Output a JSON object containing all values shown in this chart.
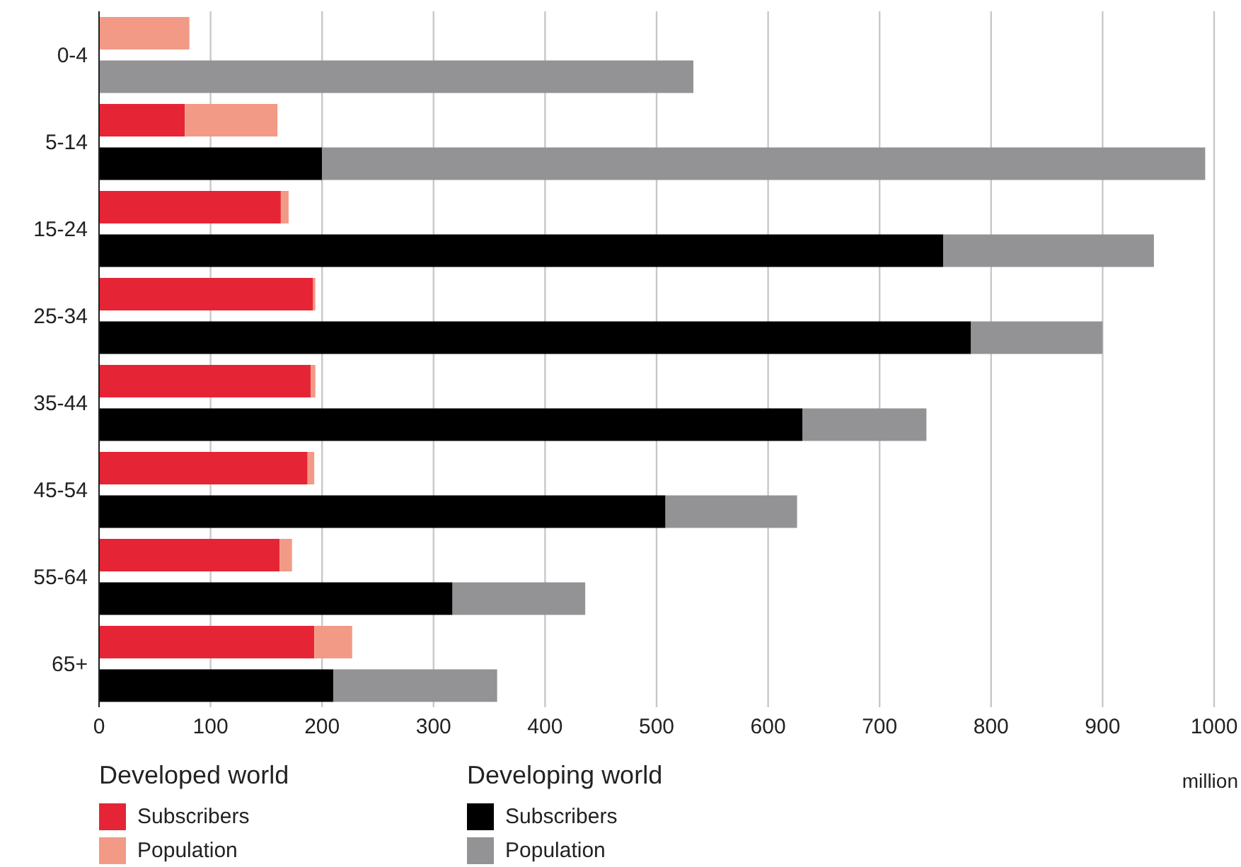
{
  "chart_data": {
    "type": "bar",
    "orientation": "horizontal",
    "stacked": true,
    "categories": [
      "0-4",
      null,
      "5-14",
      null,
      "15-24",
      null,
      "25-34",
      null,
      "35-44",
      null,
      "45-54",
      null,
      "55-64",
      null,
      "65+",
      null
    ],
    "series": [
      {
        "name": "Subscribers",
        "colors": [
          "#e52535",
          "#000000",
          "#e52535",
          "#000000",
          "#e52535",
          "#000000",
          "#e52535",
          "#000000",
          "#e52535",
          "#000000",
          "#e52535",
          "#000000",
          "#e52535",
          "#000000",
          "#e52535",
          "#000000"
        ],
        "values": [
          0,
          0,
          77,
          200,
          163,
          757,
          192,
          782,
          190,
          631,
          187,
          508,
          162,
          317,
          193,
          210
        ]
      },
      {
        "name": "Population",
        "colors": [
          "#f29a85",
          "#939396",
          "#f29a85",
          "#939396",
          "#f29a85",
          "#939396",
          "#f29a85",
          "#939396",
          "#f29a85",
          "#939396",
          "#f29a85",
          "#939396",
          "#f29a85",
          "#939396",
          "#f29a85",
          "#939396"
        ],
        "values": [
          81,
          533,
          83,
          792,
          7,
          189,
          2,
          118,
          4,
          111,
          6,
          118,
          11,
          119,
          34,
          147
        ]
      }
    ],
    "xlabel": "million",
    "annotations": [
      "Developed world",
      "Developing world"
    ],
    "xlim": [
      0,
      1000
    ],
    "xticks": [
      0,
      100,
      200,
      300,
      400,
      500,
      600,
      700,
      800,
      900,
      1000
    ],
    "grid": "x",
    "legend": "bottom"
  }
}
